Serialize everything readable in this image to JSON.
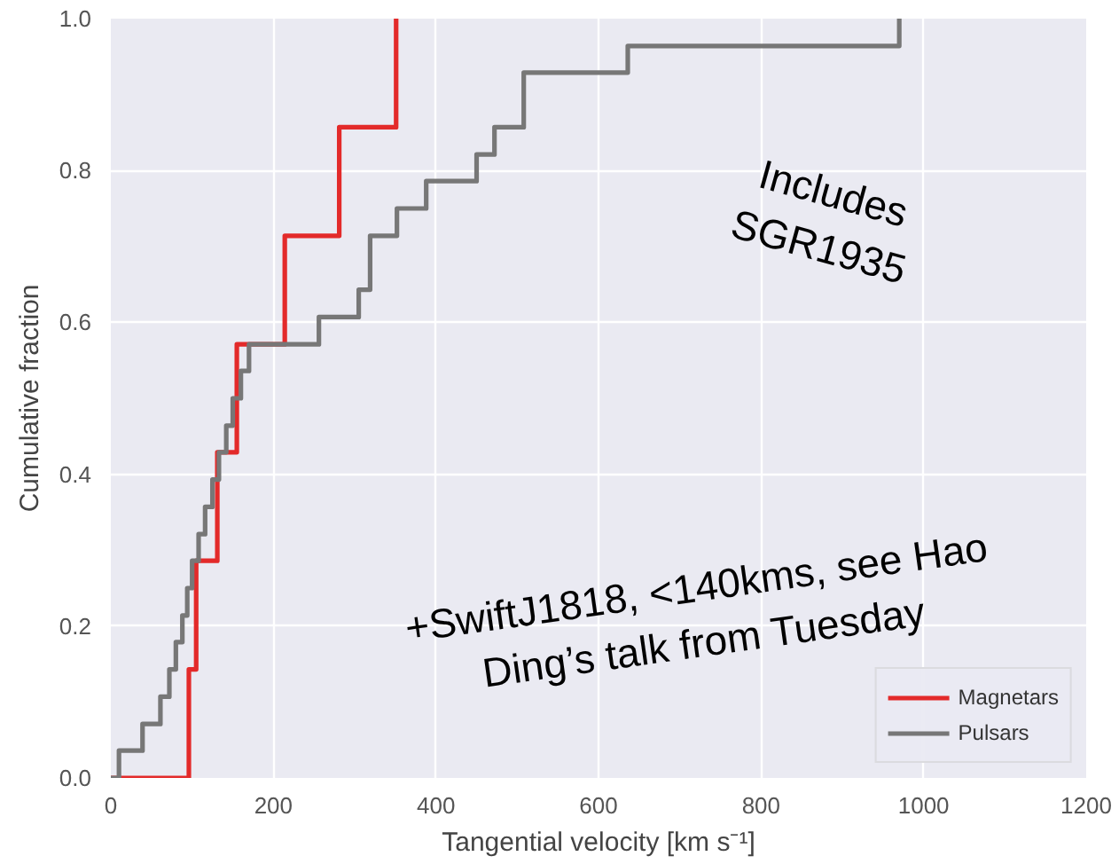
{
  "chart_data": {
    "type": "step",
    "xlabel": "Tangential velocity [km s⁻¹]",
    "ylabel": "Cumulative fraction",
    "xlim": [
      0,
      1200
    ],
    "ylim": [
      0,
      1.0
    ],
    "xticks": [
      0,
      200,
      400,
      600,
      800,
      1000,
      1200
    ],
    "yticks": [
      {
        "value": 0,
        "label": "0.0"
      },
      0.2,
      0.4,
      0.6,
      0.8,
      {
        "value": 1,
        "label": "1.0"
      }
    ],
    "grid": true,
    "legend": "bottom right",
    "series": [
      {
        "name": "Magnetars",
        "color": "#e32a2a",
        "x": [
          0,
          96,
          105,
          131,
          155,
          214,
          281,
          351
        ],
        "values": [
          0,
          0.143,
          0.286,
          0.429,
          0.571,
          0.714,
          0.857,
          1.0
        ]
      },
      {
        "name": "Pulsars",
        "color": "#777777",
        "x": [
          0,
          10,
          39,
          61,
          72,
          80,
          88,
          94,
          100,
          108,
          116,
          125,
          133,
          142,
          150,
          160,
          170,
          256,
          305,
          319,
          352,
          388,
          450,
          472,
          508,
          636,
          970
        ],
        "values": [
          0,
          0.036,
          0.071,
          0.107,
          0.143,
          0.179,
          0.214,
          0.25,
          0.286,
          0.321,
          0.357,
          0.393,
          0.429,
          0.464,
          0.5,
          0.536,
          0.571,
          0.607,
          0.643,
          0.714,
          0.75,
          0.786,
          0.821,
          0.857,
          0.929,
          0.964,
          1.0
        ]
      }
    ],
    "annotations": [
      "Includes\nSGR1935",
      "+SwiftJ1818, <140kms, see Hao\nDing’s talk from Tuesday"
    ]
  }
}
